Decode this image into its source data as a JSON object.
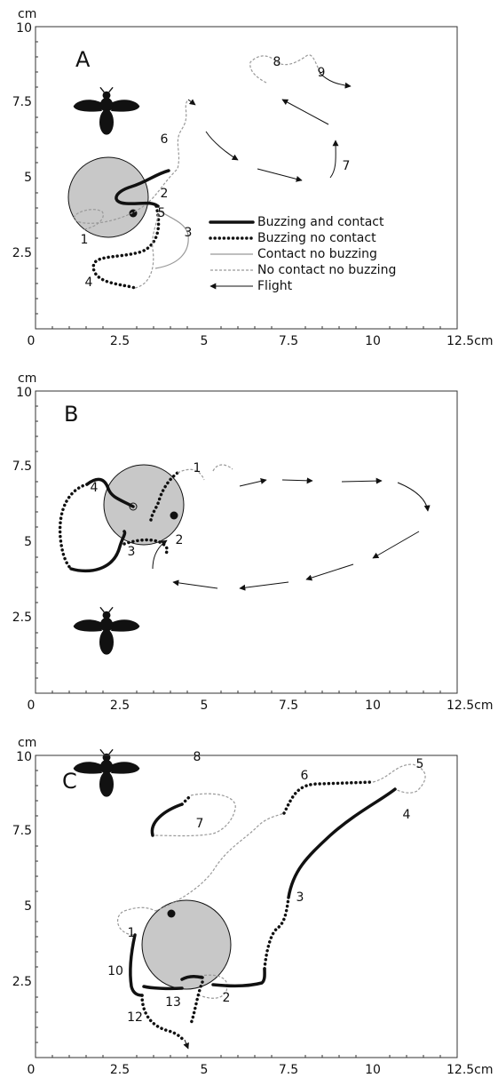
{
  "axes": {
    "unit": "cm",
    "x_ticks": [
      "0",
      "2.5",
      "5",
      "7.5",
      "10",
      "12.5cm"
    ],
    "y_ticks": [
      "10",
      "7.5",
      "5",
      "2.5"
    ]
  },
  "legend": [
    "Buzzing and contact",
    "Buzzing no contact",
    "Contact no buzzing",
    "No contact no buzzing",
    "Flight"
  ],
  "panels": [
    {
      "label": "A",
      "path_numbers": [
        "1",
        "2",
        "5",
        "3",
        "4",
        "6",
        "7",
        "8",
        "9"
      ]
    },
    {
      "label": "B",
      "path_numbers": [
        "1",
        "4",
        "3",
        "2"
      ]
    },
    {
      "label": "C",
      "path_numbers": [
        "1",
        "10",
        "12",
        "13",
        "2",
        "3",
        "4",
        "5",
        "6",
        "7",
        "8"
      ]
    }
  ]
}
